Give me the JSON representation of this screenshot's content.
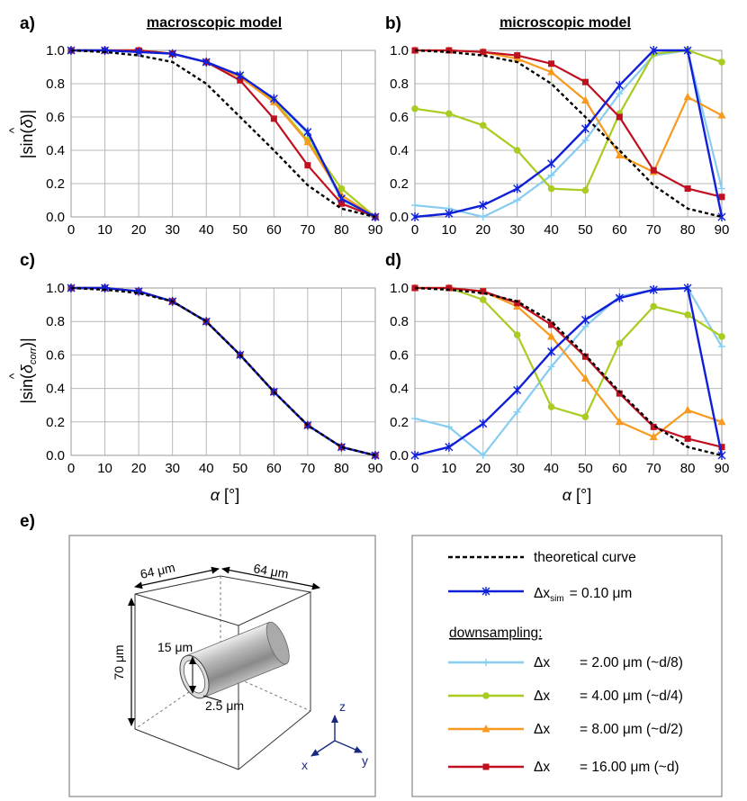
{
  "panel_labels": [
    "a)",
    "b)",
    "c)",
    "d)",
    "e)"
  ],
  "chart_data": [
    {
      "panel": "a)",
      "type": "line",
      "title": "macroscopic model",
      "xlabel": "",
      "ylabel_sym": "|sin(δ̂)|",
      "x": [
        0,
        10,
        20,
        30,
        40,
        50,
        60,
        70,
        80,
        90
      ],
      "xlim": [
        0,
        90
      ],
      "ylim": [
        0,
        1.0
      ],
      "xticks": [
        0,
        10,
        20,
        30,
        40,
        50,
        60,
        70,
        80,
        90
      ],
      "yticks": [
        0,
        0.2,
        0.4,
        0.6,
        0.8,
        1.0
      ],
      "series": [
        {
          "key": "ds2",
          "values": [
            1.0,
            1.0,
            1.0,
            0.98,
            0.93,
            0.85,
            0.71,
            0.5,
            0.1,
            0.0
          ]
        },
        {
          "key": "ds4",
          "values": [
            1.0,
            1.0,
            1.0,
            0.98,
            0.93,
            0.85,
            0.7,
            0.46,
            0.17,
            0.0
          ]
        },
        {
          "key": "ds8",
          "values": [
            1.0,
            1.0,
            1.0,
            0.98,
            0.93,
            0.84,
            0.69,
            0.45,
            0.13,
            0.0
          ]
        },
        {
          "key": "ds16",
          "values": [
            1.0,
            1.0,
            1.0,
            0.98,
            0.93,
            0.82,
            0.59,
            0.31,
            0.08,
            0.0
          ]
        },
        {
          "key": "sim",
          "values": [
            1.0,
            1.0,
            0.99,
            0.98,
            0.93,
            0.85,
            0.71,
            0.51,
            0.11,
            0.0
          ]
        },
        {
          "key": "theory",
          "values": [
            1.0,
            0.99,
            0.97,
            0.93,
            0.8,
            0.6,
            0.4,
            0.19,
            0.05,
            0.0
          ]
        }
      ]
    },
    {
      "panel": "b)",
      "type": "line",
      "title": "microscopic model",
      "xlabel": "",
      "ylabel_sym": "",
      "x": [
        0,
        10,
        20,
        30,
        40,
        50,
        60,
        70,
        80,
        90
      ],
      "xlim": [
        0,
        90
      ],
      "ylim": [
        0,
        1.0
      ],
      "xticks": [
        0,
        10,
        20,
        30,
        40,
        50,
        60,
        70,
        80,
        90
      ],
      "yticks": [
        0,
        0.2,
        0.4,
        0.6,
        0.8,
        1.0
      ],
      "series": [
        {
          "key": "ds2",
          "values": [
            0.07,
            0.05,
            0.0,
            0.1,
            0.25,
            0.46,
            0.74,
            0.97,
            1.0,
            0.17
          ]
        },
        {
          "key": "ds4",
          "values": [
            0.65,
            0.62,
            0.55,
            0.4,
            0.17,
            0.16,
            0.62,
            0.98,
            1.0,
            0.93
          ]
        },
        {
          "key": "ds8",
          "values": [
            1.0,
            1.0,
            0.99,
            0.95,
            0.87,
            0.7,
            0.37,
            0.27,
            0.72,
            0.61
          ]
        },
        {
          "key": "ds16",
          "values": [
            1.0,
            1.0,
            0.99,
            0.97,
            0.92,
            0.81,
            0.6,
            0.28,
            0.17,
            0.12
          ]
        },
        {
          "key": "sim",
          "values": [
            0.0,
            0.02,
            0.07,
            0.17,
            0.32,
            0.53,
            0.79,
            1.0,
            1.0,
            0.0
          ]
        },
        {
          "key": "theory",
          "values": [
            1.0,
            0.99,
            0.97,
            0.93,
            0.8,
            0.6,
            0.4,
            0.19,
            0.05,
            0.0
          ]
        }
      ]
    },
    {
      "panel": "c)",
      "type": "line",
      "title": "",
      "xlabel_sym": "α [°]",
      "ylabel_sym": "|sin(δ̂corr)|",
      "x": [
        0,
        10,
        20,
        30,
        40,
        50,
        60,
        70,
        80,
        90
      ],
      "xlim": [
        0,
        90
      ],
      "ylim": [
        0,
        1.0
      ],
      "xticks": [
        0,
        10,
        20,
        30,
        40,
        50,
        60,
        70,
        80,
        90
      ],
      "yticks": [
        0,
        0.2,
        0.4,
        0.6,
        0.8,
        1.0
      ],
      "series": [
        {
          "key": "ds2",
          "values": [
            1.0,
            1.0,
            0.98,
            0.92,
            0.8,
            0.6,
            0.38,
            0.18,
            0.05,
            0.0
          ]
        },
        {
          "key": "ds4",
          "values": [
            1.0,
            1.0,
            0.98,
            0.92,
            0.8,
            0.6,
            0.38,
            0.18,
            0.05,
            0.0
          ]
        },
        {
          "key": "ds8",
          "values": [
            1.0,
            1.0,
            0.98,
            0.92,
            0.8,
            0.6,
            0.38,
            0.18,
            0.05,
            0.0
          ]
        },
        {
          "key": "ds16",
          "values": [
            1.0,
            1.0,
            0.98,
            0.92,
            0.8,
            0.6,
            0.38,
            0.18,
            0.05,
            0.0
          ]
        },
        {
          "key": "sim",
          "values": [
            1.0,
            1.0,
            0.98,
            0.92,
            0.8,
            0.6,
            0.38,
            0.18,
            0.05,
            0.0
          ]
        },
        {
          "key": "theory",
          "values": [
            1.0,
            0.99,
            0.97,
            0.92,
            0.8,
            0.6,
            0.38,
            0.18,
            0.05,
            0.0
          ]
        }
      ]
    },
    {
      "panel": "d)",
      "type": "line",
      "title": "",
      "xlabel_sym": "α [°]",
      "ylabel_sym": "",
      "x": [
        0,
        10,
        20,
        30,
        40,
        50,
        60,
        70,
        80,
        90
      ],
      "xlim": [
        0,
        90
      ],
      "ylim": [
        0,
        1.0
      ],
      "xticks": [
        0,
        10,
        20,
        30,
        40,
        50,
        60,
        70,
        80,
        90
      ],
      "yticks": [
        0,
        0.2,
        0.4,
        0.6,
        0.8,
        1.0
      ],
      "series": [
        {
          "key": "ds2",
          "values": [
            0.22,
            0.17,
            0.0,
            0.26,
            0.53,
            0.77,
            0.95,
            0.99,
            1.0,
            0.65
          ]
        },
        {
          "key": "ds4",
          "values": [
            1.0,
            1.0,
            0.93,
            0.72,
            0.29,
            0.23,
            0.67,
            0.89,
            0.84,
            0.71
          ]
        },
        {
          "key": "ds8",
          "values": [
            1.0,
            1.0,
            0.98,
            0.89,
            0.71,
            0.46,
            0.2,
            0.11,
            0.27,
            0.2
          ]
        },
        {
          "key": "ds16",
          "values": [
            1.0,
            1.0,
            0.98,
            0.91,
            0.78,
            0.59,
            0.37,
            0.17,
            0.1,
            0.05
          ]
        },
        {
          "key": "sim",
          "values": [
            0.0,
            0.05,
            0.19,
            0.39,
            0.62,
            0.81,
            0.94,
            0.99,
            1.0,
            0.0
          ]
        },
        {
          "key": "theory",
          "values": [
            1.0,
            0.99,
            0.97,
            0.92,
            0.8,
            0.6,
            0.38,
            0.18,
            0.05,
            0.0
          ]
        }
      ]
    }
  ],
  "series_style": {
    "theory": {
      "color": "#000000",
      "marker": "none",
      "dash": true
    },
    "sim": {
      "color": "#1020d8",
      "marker": "x"
    },
    "ds2": {
      "color": "#88ccf0",
      "marker": "plus"
    },
    "ds4": {
      "color": "#a8cc20",
      "marker": "circle"
    },
    "ds8": {
      "color": "#f89a20",
      "marker": "triangle"
    },
    "ds16": {
      "color": "#c01020",
      "marker": "square"
    }
  },
  "legend": {
    "theory": "theoretical curve",
    "sim": "Δx",
    "sim_sub": "sim",
    "sim_value": "= 0.10 μm",
    "heading": "downsampling:",
    "ds_symbol": "Δx",
    "ds2_value": "= 2.00 μm (~d/8)",
    "ds4_value": "= 4.00 μm (~d/4)",
    "ds8_value": "= 8.00 μm (~d/2)",
    "ds16_value": "= 16.00 μm (~d)"
  },
  "diagram": {
    "width_1": "64 μm",
    "width_2": "64 μm",
    "height": "70 μm",
    "diameter": "15 μm",
    "wall": "2.5 μm",
    "axis_z": "z",
    "axis_x": "x",
    "axis_y": "y"
  }
}
